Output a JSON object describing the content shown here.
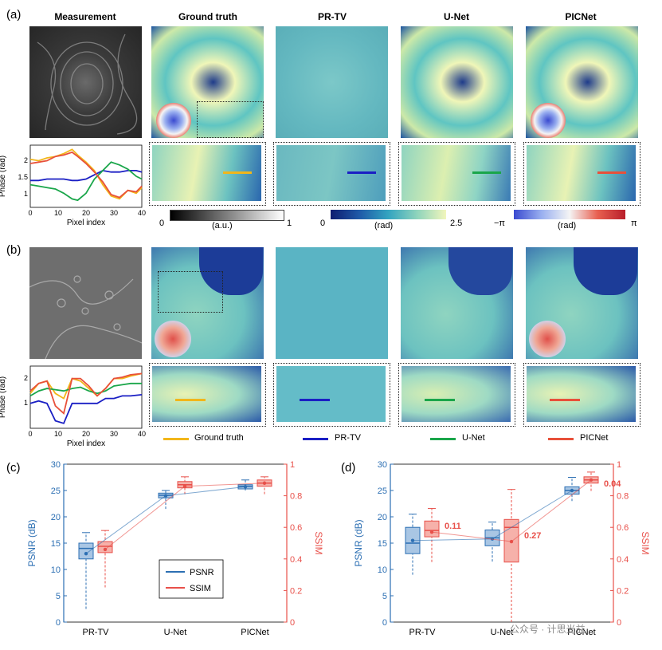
{
  "panel_labels": {
    "a": "(a)",
    "b": "(b)",
    "c": "(c)",
    "d": "(d)"
  },
  "column_titles": [
    "Measurement",
    "Ground truth",
    "PR-TV",
    "U-Net",
    "PICNet"
  ],
  "lineplot": {
    "ylabel": "Phase (rad)",
    "xlabel": "Pixel index",
    "xticks": [
      "0",
      "10",
      "20",
      "30",
      "40"
    ],
    "a_yticks": [
      "1",
      "1.5",
      "2"
    ],
    "b_yticks": [
      "1",
      "2"
    ]
  },
  "colorbars": {
    "gray": {
      "min": "0",
      "max": "1",
      "unit": "(a.u.)"
    },
    "phase": {
      "min": "0",
      "max": "2.5",
      "unit": "(rad)"
    },
    "pupil": {
      "min": "−π",
      "max": "π",
      "unit": "(rad)"
    }
  },
  "legend": [
    "Ground truth",
    "PR-TV",
    "U-Net",
    "PICNet"
  ],
  "colors": {
    "gt": "#f2b61a",
    "prtv": "#1a1fc4",
    "unet": "#1aa64a",
    "picnet": "#e8503a",
    "psnr": "#2c6fb3",
    "ssim": "#e8504a"
  },
  "chart_data": [
    {
      "type": "line",
      "panel": "(a)",
      "xlabel": "Pixel index",
      "ylabel": "Phase (rad)",
      "xlim": [
        0,
        40
      ],
      "ylim": [
        0.3,
        2.5
      ],
      "x": [
        0,
        3,
        6,
        9,
        12,
        15,
        17,
        20,
        23,
        26,
        29,
        32,
        35,
        38,
        40
      ],
      "series": [
        {
          "name": "Ground truth",
          "values": [
            2.0,
            1.95,
            2.05,
            2.1,
            2.2,
            2.35,
            2.15,
            1.9,
            1.6,
            1.1,
            0.7,
            0.6,
            0.9,
            0.8,
            1.0
          ]
        },
        {
          "name": "PR-TV",
          "values": [
            1.25,
            1.25,
            1.3,
            1.3,
            1.3,
            1.25,
            1.25,
            1.3,
            1.45,
            1.6,
            1.55,
            1.55,
            1.6,
            1.6,
            1.55
          ]
        },
        {
          "name": "U-Net",
          "values": [
            1.1,
            1.05,
            1.0,
            0.95,
            0.8,
            0.6,
            0.55,
            0.8,
            1.3,
            1.6,
            1.9,
            1.8,
            1.65,
            1.4,
            1.3
          ]
        },
        {
          "name": "PICNet",
          "values": [
            1.85,
            1.9,
            1.95,
            2.1,
            2.15,
            2.25,
            2.1,
            1.85,
            1.55,
            1.2,
            0.75,
            0.65,
            0.9,
            0.85,
            1.05
          ]
        }
      ]
    },
    {
      "type": "line",
      "panel": "(b)",
      "xlabel": "Pixel index",
      "ylabel": "Phase (rad)",
      "xlim": [
        0,
        40
      ],
      "ylim": [
        0.0,
        2.5
      ],
      "x": [
        0,
        3,
        6,
        9,
        12,
        15,
        18,
        21,
        24,
        27,
        30,
        33,
        36,
        40
      ],
      "series": [
        {
          "name": "Ground truth",
          "values": [
            1.4,
            1.8,
            1.9,
            1.4,
            1.2,
            2.0,
            1.9,
            1.6,
            1.3,
            1.6,
            2.0,
            2.0,
            2.1,
            2.2
          ]
        },
        {
          "name": "PR-TV",
          "values": [
            1.0,
            1.1,
            1.0,
            0.3,
            0.2,
            1.0,
            1.0,
            1.0,
            1.0,
            1.2,
            1.2,
            1.3,
            1.3,
            1.35
          ]
        },
        {
          "name": "U-Net",
          "values": [
            1.3,
            1.5,
            1.6,
            1.55,
            1.5,
            1.6,
            1.65,
            1.5,
            1.4,
            1.5,
            1.7,
            1.75,
            1.8,
            1.8
          ]
        },
        {
          "name": "PICNet",
          "values": [
            1.5,
            1.8,
            1.9,
            0.9,
            0.6,
            2.0,
            2.0,
            1.7,
            1.3,
            1.6,
            2.0,
            2.05,
            2.15,
            2.2
          ]
        }
      ]
    },
    {
      "type": "box",
      "panel": "(c)",
      "categories": [
        "PR-TV",
        "U-Net",
        "PICNet"
      ],
      "ylabel_left": "PSNR (dB)",
      "ylabel_right": "SSIM",
      "ylim_left": [
        0,
        30
      ],
      "ylim_right": [
        0,
        1
      ],
      "yticks_left": [
        "0",
        "5",
        "10",
        "15",
        "20",
        "25",
        "30"
      ],
      "yticks_right": [
        "0",
        "0.2",
        "0.4",
        "0.6",
        "0.8",
        "1"
      ],
      "legend": [
        "PSNR",
        "SSIM"
      ],
      "series": [
        {
          "name": "PSNR",
          "means": [
            13.0,
            24.0,
            25.7
          ],
          "q1": [
            12.0,
            23.6,
            25.3
          ],
          "median": [
            14.0,
            24.1,
            25.8
          ],
          "q3": [
            15.0,
            24.5,
            26.1
          ],
          "whisker_low": [
            2.5,
            21.5,
            25.0
          ],
          "whisker_high": [
            17.0,
            25.0,
            27.0
          ]
        },
        {
          "name": "SSIM",
          "means": [
            0.46,
            0.86,
            0.88
          ],
          "q1": [
            0.44,
            0.85,
            0.86
          ],
          "median": [
            0.48,
            0.87,
            0.88
          ],
          "q3": [
            0.51,
            0.89,
            0.9
          ],
          "whisker_low": [
            0.22,
            0.81,
            0.81
          ],
          "whisker_high": [
            0.58,
            0.92,
            0.92
          ]
        }
      ]
    },
    {
      "type": "box",
      "panel": "(d)",
      "categories": [
        "PR-TV",
        "U-Net",
        "PICNet"
      ],
      "ylabel_left": "PSNR (dB)",
      "ylabel_right": "SSIM",
      "ylim_left": [
        0,
        30
      ],
      "ylim_right": [
        0,
        1
      ],
      "yticks_left": [
        "0",
        "5",
        "10",
        "15",
        "20",
        "25",
        "30"
      ],
      "yticks_right": [
        "0",
        "0.2",
        "0.4",
        "0.6",
        "0.8",
        "1"
      ],
      "annotations": [
        "0.11",
        "0.27",
        "0.04"
      ],
      "series": [
        {
          "name": "PSNR",
          "means": [
            15.5,
            15.8,
            25.0
          ],
          "q1": [
            13.0,
            14.5,
            24.3
          ],
          "median": [
            15.0,
            16.0,
            25.0
          ],
          "q3": [
            18.0,
            17.5,
            25.7
          ],
          "whisker_low": [
            9.0,
            11.5,
            23.0
          ],
          "whisker_high": [
            20.5,
            19.0,
            27.5
          ]
        },
        {
          "name": "SSIM",
          "means": [
            0.57,
            0.51,
            0.9
          ],
          "q1": [
            0.54,
            0.38,
            0.88
          ],
          "median": [
            0.58,
            0.6,
            0.9
          ],
          "q3": [
            0.64,
            0.65,
            0.92
          ],
          "whisker_low": [
            0.38,
            0.0,
            0.83
          ],
          "whisker_high": [
            0.72,
            0.84,
            0.95
          ]
        }
      ]
    }
  ],
  "watermark": "公众号 · 计思光益"
}
